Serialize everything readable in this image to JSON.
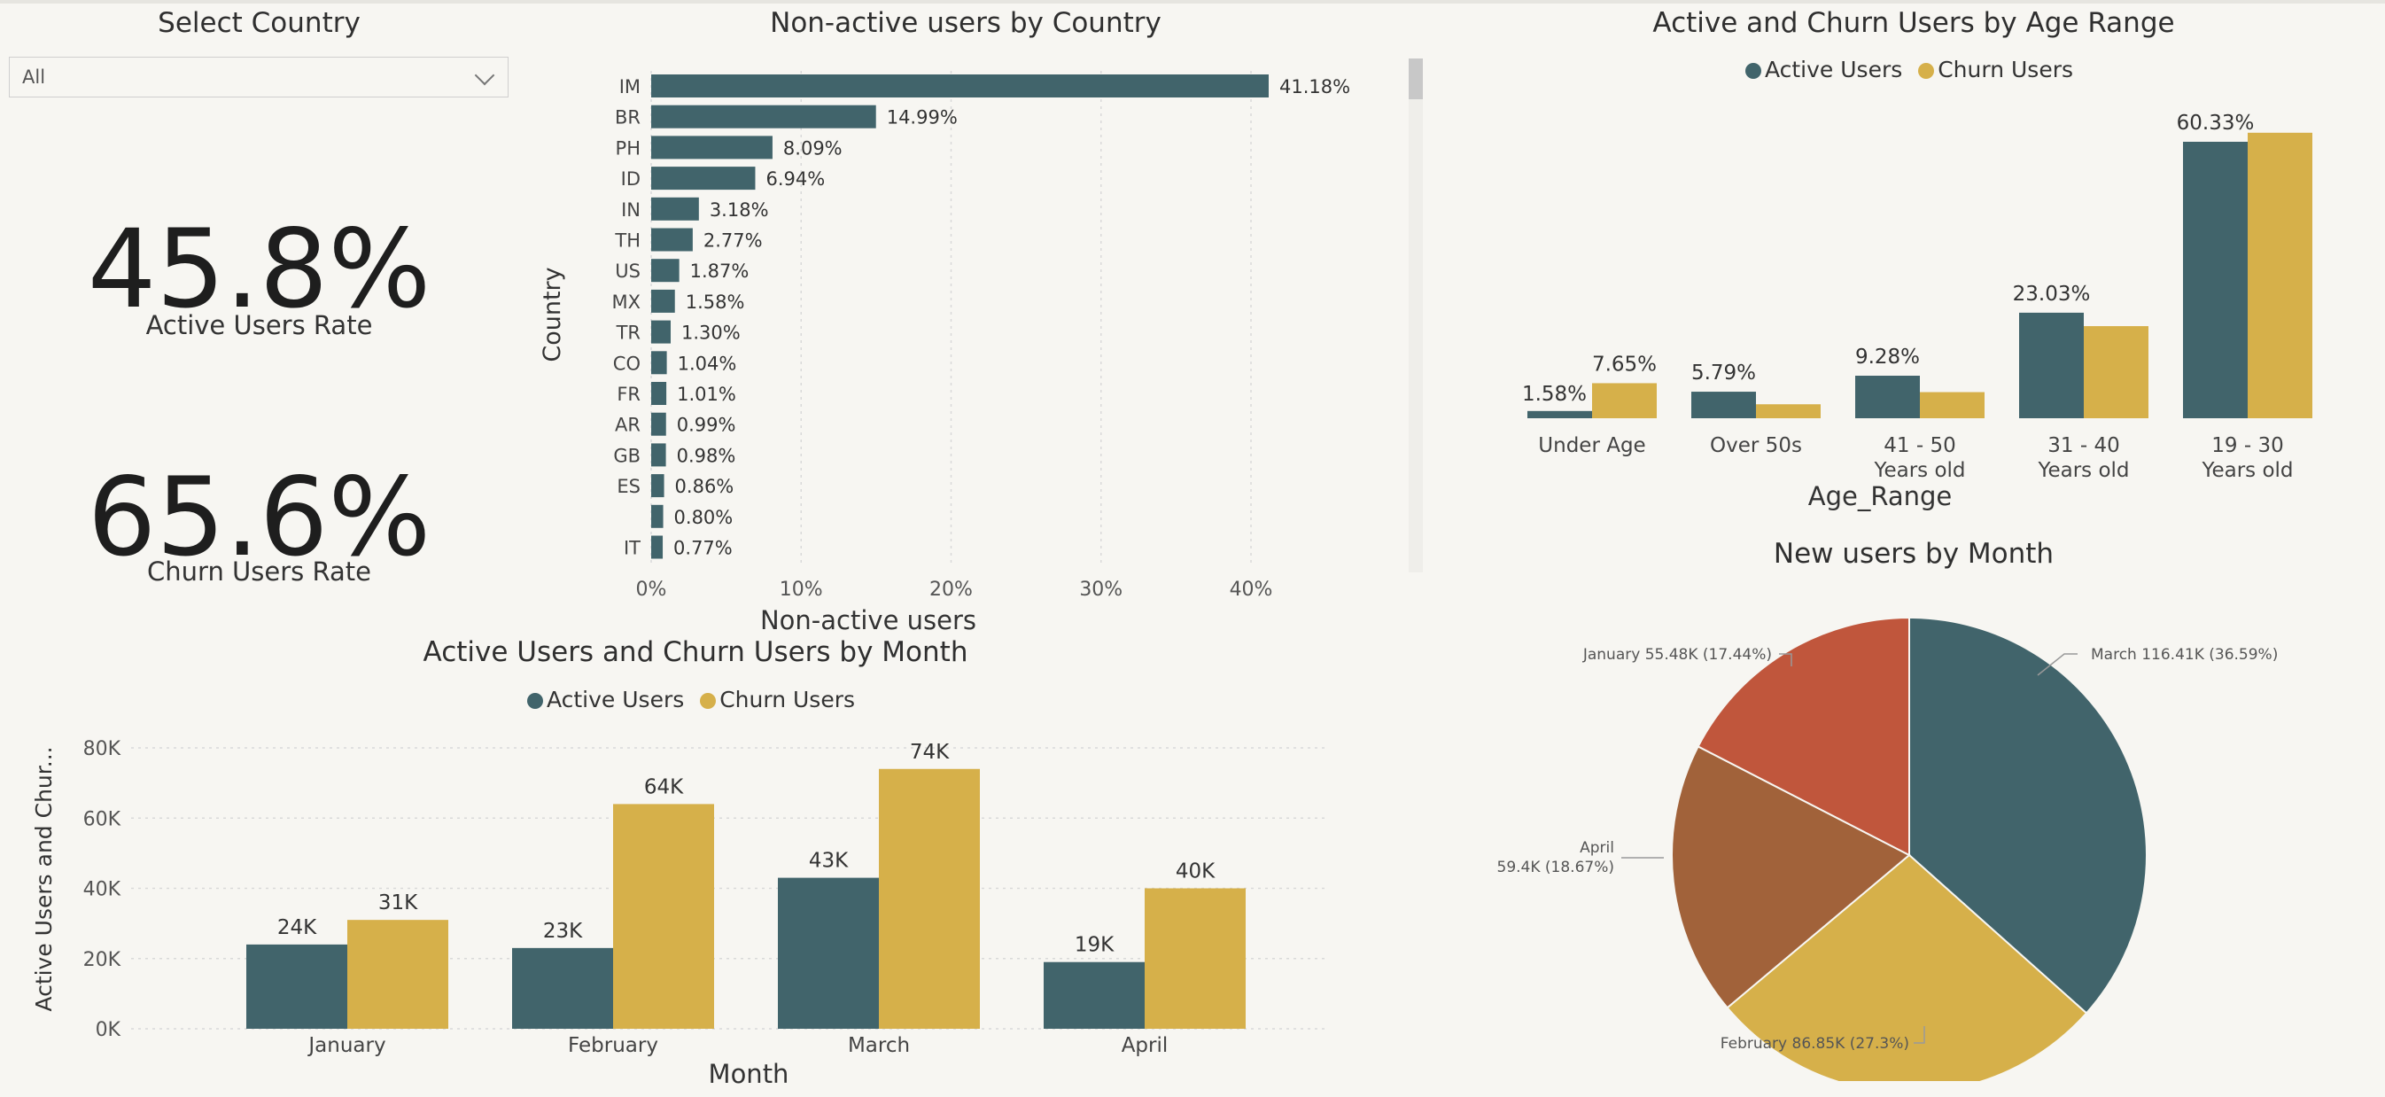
{
  "colors": {
    "active": "#41646b",
    "churn": "#d6b04a",
    "pie_jan": "#c0563c",
    "pie_feb": "#d6b04a",
    "pie_mar": "#41646b",
    "pie_apr": "#a1623a",
    "grid": "#d9d9d9"
  },
  "slicer": {
    "title": "Select Country",
    "value": "All",
    "icon": "chevron-down-icon"
  },
  "cards": {
    "active": {
      "value": "45.8%",
      "label": "Active Users Rate"
    },
    "churn": {
      "value": "65.6%",
      "label": "Churn Users Rate"
    }
  },
  "chart_data": [
    {
      "id": "nonactive",
      "type": "bar",
      "orientation": "horizontal",
      "title": "Non-active users by Country",
      "xlabel": "Non-active users",
      "ylabel": "Country",
      "categories": [
        "IM",
        "BR",
        "PH",
        "ID",
        "IN",
        "TH",
        "US",
        "MX",
        "TR",
        "CO",
        "FR",
        "AR",
        "GB",
        "ES",
        "",
        "IT"
      ],
      "values": [
        41.18,
        14.99,
        8.09,
        6.94,
        3.18,
        2.77,
        1.87,
        1.58,
        1.3,
        1.04,
        1.01,
        0.99,
        0.98,
        0.86,
        0.8,
        0.77
      ],
      "value_labels": [
        "41.18%",
        "14.99%",
        "8.09%",
        "6.94%",
        "3.18%",
        "2.77%",
        "1.87%",
        "1.58%",
        "1.30%",
        "1.04%",
        "1.01%",
        "0.99%",
        "0.98%",
        "0.86%",
        "0.80%",
        "0.77%"
      ],
      "xticks": [
        "0%",
        "10%",
        "20%",
        "30%",
        "40%"
      ],
      "xlim": [
        0,
        43
      ]
    },
    {
      "id": "age",
      "type": "bar",
      "title": "Active and Churn Users by Age Range",
      "xlabel": "Age_Range",
      "categories": [
        [
          "Under Age"
        ],
        [
          "Over 50s"
        ],
        [
          "41 - 50",
          "Years old"
        ],
        [
          "31 - 40",
          "Years old"
        ],
        [
          "19 - 30",
          "Years old"
        ]
      ],
      "series": [
        {
          "name": "Active Users",
          "values": [
            1.58,
            5.79,
            9.28,
            23.03,
            60.33
          ],
          "labels": [
            "1.58%",
            "5.79%",
            "9.28%",
            "23.03%",
            "60.33%"
          ]
        },
        {
          "name": "Churn Users",
          "values": [
            7.65,
            3.05,
            5.7,
            20.1,
            62.3
          ],
          "labels": [
            "7.65%",
            "",
            "",
            "",
            ""
          ]
        }
      ],
      "legend": "top-center",
      "ylim": [
        0,
        62.5
      ]
    },
    {
      "id": "month",
      "type": "bar",
      "title": "Active Users and Churn Users by Month",
      "xlabel": "Month",
      "ylabel": "Active Users and Chur...",
      "categories": [
        "January",
        "February",
        "March",
        "April"
      ],
      "series": [
        {
          "name": "Active Users",
          "values": [
            24,
            23,
            43,
            19
          ],
          "labels": [
            "24K",
            "23K",
            "43K",
            "19K"
          ]
        },
        {
          "name": "Churn Users",
          "values": [
            31,
            64,
            74,
            40
          ],
          "labels": [
            "31K",
            "64K",
            "74K",
            "40K"
          ]
        }
      ],
      "yticks": [
        "0K",
        "20K",
        "40K",
        "60K",
        "80K"
      ],
      "ylim": [
        0,
        80
      ],
      "legend": "top-center"
    },
    {
      "id": "newusers",
      "type": "pie",
      "title": "New users by Month",
      "slices": [
        {
          "label": "March",
          "value": 116.41,
          "text": "March 116.41K (36.59%)"
        },
        {
          "label": "February",
          "value": 86.85,
          "text": "February 86.85K (27.3%)"
        },
        {
          "label": "April",
          "value": 59.4,
          "text_lines": [
            "April",
            "59.4K (18.67%)"
          ]
        },
        {
          "label": "January",
          "value": 55.48,
          "text": "January 55.48K (17.44%)"
        }
      ]
    }
  ]
}
